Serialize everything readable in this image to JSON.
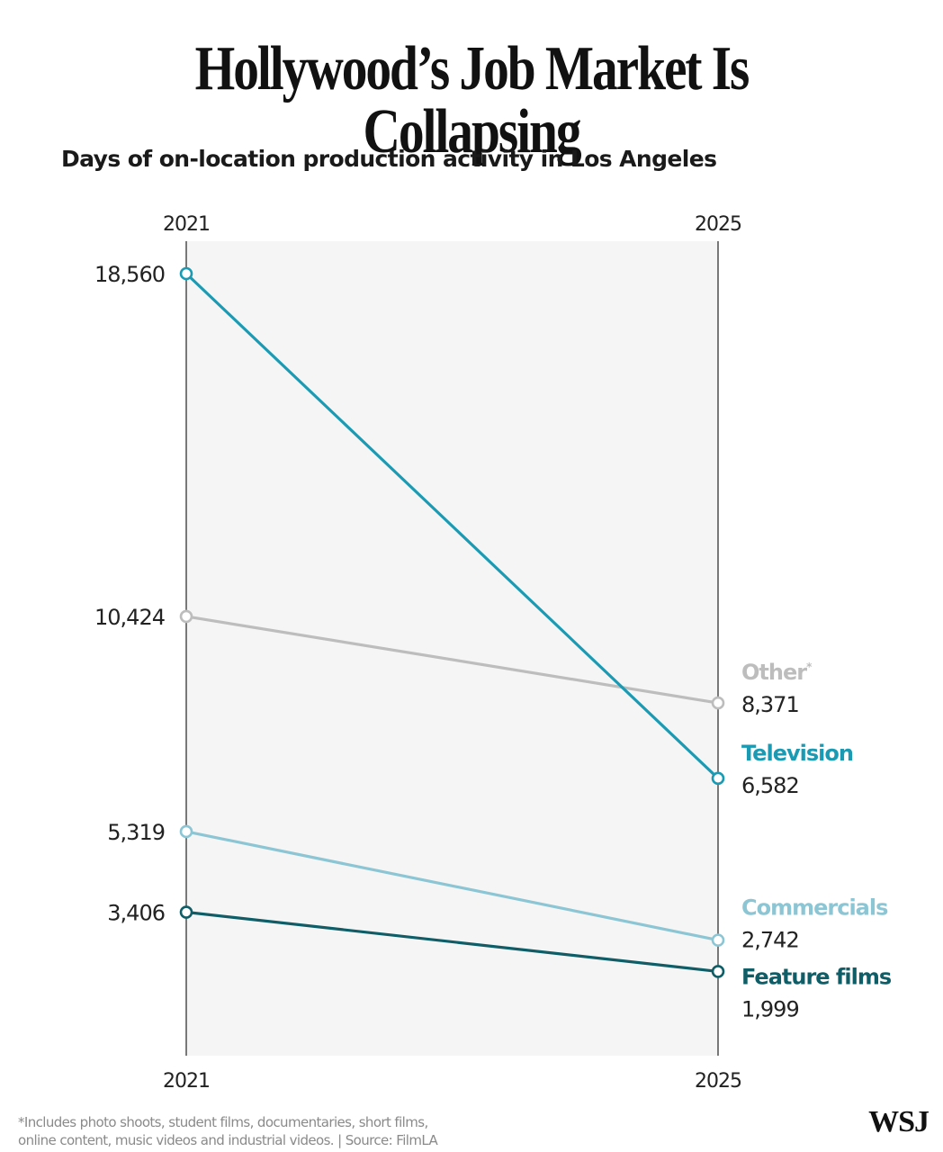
{
  "header": {
    "title": "Hollywood’s Job Market Is Collapsing",
    "subtitle": "Days of on-location production activity in Los Angeles"
  },
  "colors": {
    "panel_background": "#f5f5f5",
    "axis": "#333333",
    "value_text": "#222222"
  },
  "chart_data": {
    "type": "line",
    "subtype": "slope",
    "title": "Days of on-location production activity in Los Angeles",
    "x": [
      "2021",
      "2025"
    ],
    "xlabel": "",
    "ylabel": "",
    "ylim": [
      0,
      18560
    ],
    "grid": false,
    "legend": "direct labels at right",
    "series": [
      {
        "name": "Other",
        "label": "Other",
        "footnote_mark": "*",
        "values": [
          10424,
          8371
        ],
        "value_labels": [
          "10,424",
          "8,371"
        ],
        "color": "#bdbdbd"
      },
      {
        "name": "Television",
        "label": "Television",
        "footnote_mark": "",
        "values": [
          18560,
          6582
        ],
        "value_labels": [
          "18,560",
          "6,582"
        ],
        "color": "#1a9bb3"
      },
      {
        "name": "Commercials",
        "label": "Commercials",
        "footnote_mark": "",
        "values": [
          5319,
          2742
        ],
        "value_labels": [
          "5,319",
          "2,742"
        ],
        "color": "#8cc6d4"
      },
      {
        "name": "Feature films",
        "label": "Feature films",
        "footnote_mark": "",
        "values": [
          3406,
          1999
        ],
        "value_labels": [
          "3,406",
          "1,999"
        ],
        "color": "#0f5d66"
      }
    ]
  },
  "footer": {
    "footnote_line1": "*Includes photo shoots, student films, documentaries, short films,",
    "footnote_line2": "online content, music videos and industrial videos. | Source: FilmLA",
    "logo": "WSJ"
  }
}
